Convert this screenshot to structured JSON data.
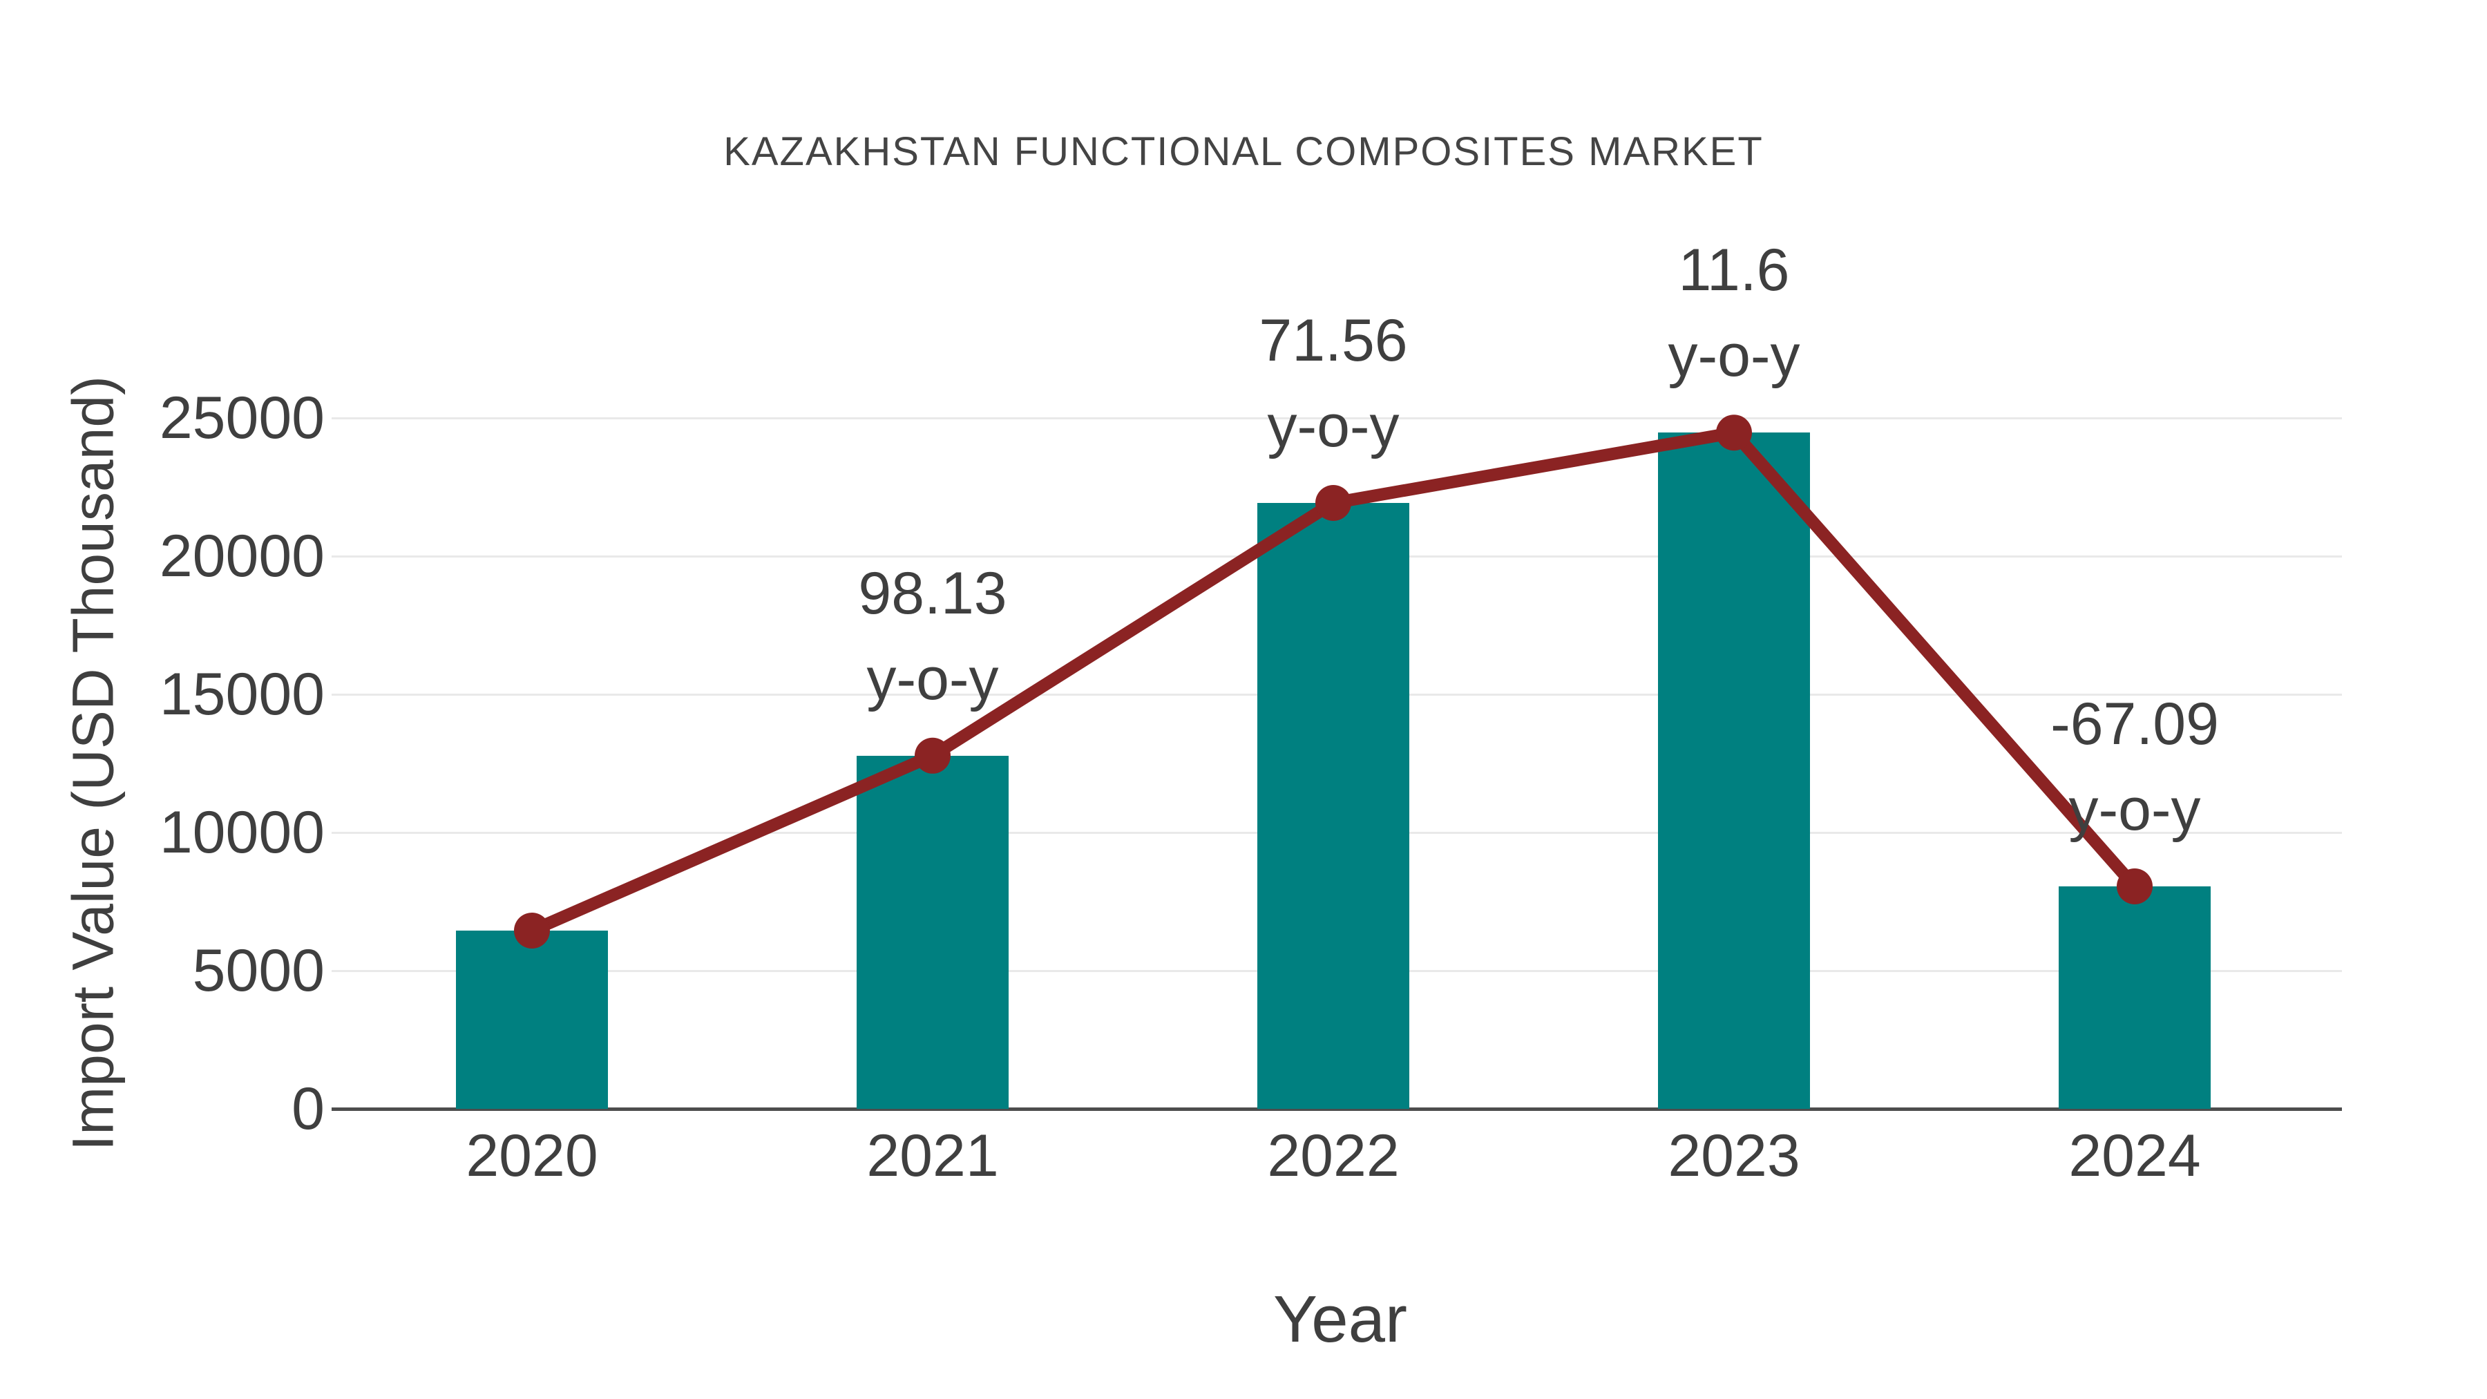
{
  "title": "KAZAKHSTAN FUNCTIONAL COMPOSITES MARKET",
  "chart_data": {
    "type": "bar",
    "title": "KAZAKHSTAN FUNCTIONAL COMPOSITES MARKET",
    "xlabel": "Year",
    "ylabel": "Import Value (USD Thousand)",
    "categories": [
      "2020",
      "2021",
      "2022",
      "2023",
      "2024"
    ],
    "series": [
      {
        "name": "Import Value bars",
        "type": "bar",
        "color": "#008080",
        "values": [
          6450,
          12780,
          21925,
          24470,
          8050
        ]
      },
      {
        "name": "Import Value trend line",
        "type": "line",
        "color": "#8b2323",
        "values": [
          6450,
          12780,
          21925,
          24470,
          8050
        ]
      }
    ],
    "annotations": [
      {
        "category": "2021",
        "line1": "98.13",
        "line2": "y-o-y"
      },
      {
        "category": "2022",
        "line1": "71.56",
        "line2": "y-o-y"
      },
      {
        "category": "2023",
        "line1": "11.6",
        "line2": "y-o-y"
      },
      {
        "category": "2024",
        "line1": "-67.09",
        "line2": "y-o-y"
      }
    ],
    "yticks": [
      0,
      5000,
      10000,
      15000,
      20000,
      25000
    ],
    "ylim": [
      0,
      25000
    ],
    "grid": true,
    "legend_position": "none"
  },
  "colors": {
    "bar": "#008080",
    "line": "#8b2323",
    "grid": "#e9e9e9",
    "axis": "#4d4d4d",
    "text": "#3f3f3f",
    "background": "#ffffff"
  }
}
